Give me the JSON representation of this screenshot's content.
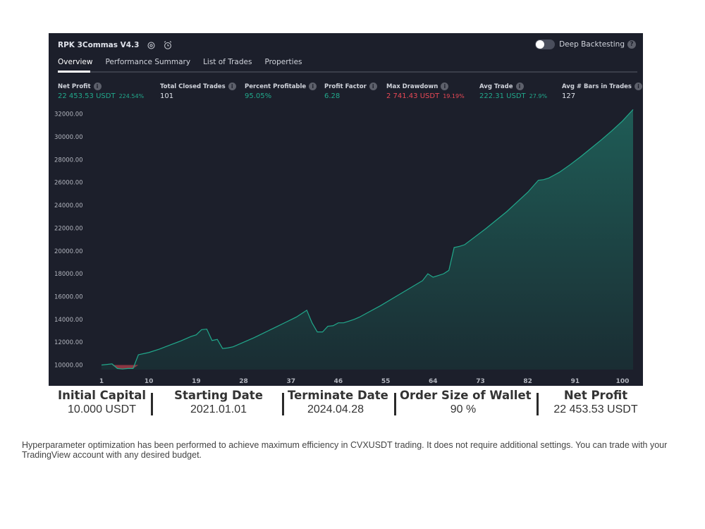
{
  "header": {
    "title": "RPK 3Commas V4.3",
    "deep_backtesting": "Deep Backtesting"
  },
  "tabs": [
    {
      "label": "Overview",
      "active": true
    },
    {
      "label": "Performance Summary",
      "active": false
    },
    {
      "label": "List of Trades",
      "active": false
    },
    {
      "label": "Properties",
      "active": false
    }
  ],
  "stats": {
    "net_profit": {
      "label": "Net Profit",
      "value": "22 453.53 USDT",
      "pct": "224.54%"
    },
    "total_closed_trades": {
      "label": "Total Closed Trades",
      "value": "101"
    },
    "percent_profitable": {
      "label": "Percent Profitable",
      "value": "95.05%"
    },
    "profit_factor": {
      "label": "Profit Factor",
      "value": "6.28"
    },
    "max_drawdown": {
      "label": "Max Drawdown",
      "value": "2 741.43 USDT",
      "pct": "19.19%"
    },
    "avg_trade": {
      "label": "Avg Trade",
      "value": "222.31 USDT",
      "pct": "27.9%"
    },
    "avg_bars": {
      "label": "Avg # Bars in Trades",
      "value": "127"
    }
  },
  "colors": {
    "panel_bg": "#1c1f2b",
    "positive": "#21a88b",
    "negative": "#e84855",
    "area_top": "#1f5c56",
    "area_bottom": "#1a2d33"
  },
  "chart_data": {
    "type": "area",
    "title": "",
    "xlabel": "",
    "ylabel": "",
    "xlim": [
      1,
      102
    ],
    "ylim": [
      9600,
      32600
    ],
    "y_ticks": [
      "32000.00",
      "30000.00",
      "28000.00",
      "26000.00",
      "24000.00",
      "22000.00",
      "20000.00",
      "18000.00",
      "16000.00",
      "14000.00",
      "12000.00",
      "10000.00"
    ],
    "x_ticks": [
      "1",
      "10",
      "19",
      "28",
      "37",
      "46",
      "55",
      "64",
      "73",
      "82",
      "91",
      "100"
    ],
    "grid": false,
    "series": [
      {
        "x": [
          1,
          3,
          4,
          5,
          6,
          7,
          8,
          9,
          10,
          12,
          14,
          16,
          18,
          19,
          20,
          21,
          22,
          23,
          24,
          25,
          26,
          28,
          30,
          32,
          34,
          36,
          38,
          40,
          41,
          42,
          43,
          44,
          45,
          46,
          47,
          48,
          49,
          50,
          52,
          54,
          56,
          58,
          60,
          62,
          63,
          64,
          65,
          66,
          67,
          68,
          69,
          70,
          72,
          74,
          76,
          78,
          80,
          82,
          84,
          85,
          86,
          87,
          88,
          90,
          92,
          94,
          96,
          98,
          100,
          102
        ],
        "y": [
          10000,
          10100,
          9700,
          9650,
          9700,
          9700,
          10900,
          11000,
          11100,
          11400,
          11750,
          12100,
          12500,
          12650,
          13100,
          13150,
          12150,
          12250,
          11450,
          11500,
          11600,
          12000,
          12400,
          12850,
          13300,
          13750,
          14200,
          14800,
          13700,
          12900,
          12900,
          13400,
          13450,
          13700,
          13700,
          13850,
          14000,
          14200,
          14700,
          15200,
          15750,
          16300,
          16850,
          17400,
          18000,
          17700,
          17850,
          18000,
          18300,
          20300,
          20400,
          20550,
          21250,
          21950,
          22700,
          23450,
          24300,
          25150,
          26200,
          26250,
          26400,
          26650,
          26900,
          27550,
          28250,
          29000,
          29750,
          30550,
          31400,
          32400
        ]
      }
    ]
  },
  "footer": {
    "items": [
      {
        "heading": "Initial Capital",
        "value": "10.000 USDT"
      },
      {
        "heading": "Starting Date",
        "value": "2021.01.01"
      },
      {
        "heading": "Terminate Date",
        "value": "2024.04.28"
      },
      {
        "heading": "Order Size of Wallet",
        "value": "90 %"
      },
      {
        "heading": "Net Profit",
        "value": "22 453.53 USDT"
      }
    ]
  },
  "description": "Hyperparameter optimization has been performed to achieve maximum efficiency in CVXUSDT trading. It does not require additional settings. You can trade with your TradingView account with any desired budget."
}
